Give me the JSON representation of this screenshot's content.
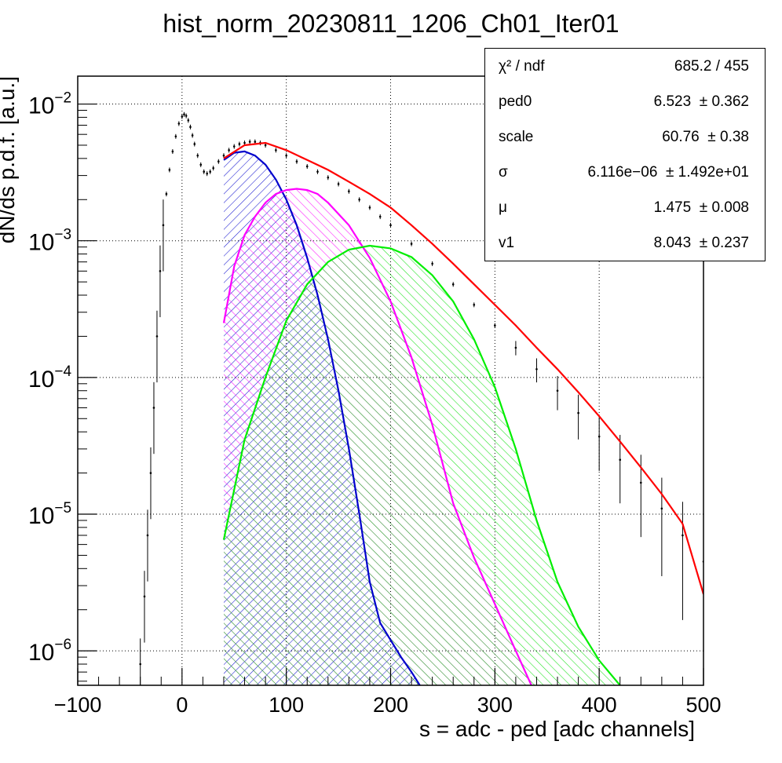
{
  "title": "hist_norm_20230811_1206_Ch01_Iter01",
  "stats_box": {
    "rows": [
      {
        "name": "χ² / ndf",
        "value": "685.2 / 455"
      },
      {
        "name": "ped0",
        "value": "6.523  ± 0.362"
      },
      {
        "name": "scale",
        "value": "60.76  ± 0.38"
      },
      {
        "name": "σ",
        "value": "6.116e−06  ± 1.492e+01"
      },
      {
        "name": "μ",
        "value": "1.475  ± 0.008"
      },
      {
        "name": "v1",
        "value": "8.043  ± 0.237"
      }
    ]
  },
  "colors": {
    "data": "#000000",
    "total_fit": "#ff0000",
    "component_1": "#0000cc",
    "component_2": "#ff00ff",
    "component_3": "#00ee00"
  },
  "chart_data": {
    "type": "line",
    "title": "hist_norm_20230811_1206_Ch01_Iter01",
    "xlabel": "s = adc - ped [adc channels]",
    "ylabel": "dN/ds p.d.f. [a.u.]",
    "xlim": [
      -100,
      500
    ],
    "ylim": [
      5.6e-07,
      0.016
    ],
    "yscale": "log",
    "grid": true,
    "x_ticks": [
      "−100",
      "0",
      "100",
      "200",
      "300",
      "400",
      "500"
    ],
    "y_ticks": [
      {
        "value": 0.01,
        "mant": "10",
        "exp": "−2"
      },
      {
        "value": 0.001,
        "mant": "10",
        "exp": "−3"
      },
      {
        "value": 0.0001,
        "mant": "10",
        "exp": "−4"
      },
      {
        "value": 1e-05,
        "mant": "10",
        "exp": "−5"
      },
      {
        "value": 1e-06,
        "mant": "10",
        "exp": "−6"
      }
    ],
    "series": [
      {
        "x": [
          -40,
          -36,
          -33,
          -30,
          -27,
          -24,
          -21,
          -18,
          -15,
          -12,
          -9,
          -6,
          -3,
          0,
          2,
          4,
          6,
          8,
          10,
          12,
          15,
          18,
          21,
          24,
          27,
          30,
          35,
          40,
          45,
          50,
          55,
          60,
          65,
          70,
          75,
          80,
          90,
          100,
          110,
          120,
          130,
          140,
          150,
          160,
          170,
          180,
          190,
          200,
          220,
          240,
          260,
          280,
          300,
          320,
          340,
          360,
          380,
          400,
          420,
          440,
          460,
          480,
          500
        ],
        "y": [
          8e-07,
          2.5e-06,
          7e-06,
          2e-05,
          6e-05,
          0.0002,
          0.0006,
          0.0013,
          0.0022,
          0.0033,
          0.0045,
          0.0058,
          0.0072,
          0.0081,
          0.0084,
          0.0082,
          0.0076,
          0.0068,
          0.0059,
          0.0051,
          0.0042,
          0.0036,
          0.0032,
          0.0031,
          0.0032,
          0.0034,
          0.0038,
          0.0042,
          0.0046,
          0.0049,
          0.0051,
          0.0052,
          0.0053,
          0.0053,
          0.0052,
          0.005,
          0.0046,
          0.0042,
          0.0038,
          0.0035,
          0.0032,
          0.0029,
          0.0026,
          0.0023,
          0.002,
          0.00175,
          0.0015,
          0.0013,
          0.00095,
          0.00068,
          0.00048,
          0.00034,
          0.00024,
          0.000165,
          0.000115,
          8e-05,
          5.5e-05,
          3.7e-05,
          2.5e-05,
          1.7e-05,
          1.1e-05,
          7e-06,
          4.5e-06
        ]
      },
      {
        "x": [
          40,
          60,
          80,
          100,
          120,
          140,
          160,
          180,
          200,
          220,
          240,
          260,
          280,
          300,
          320,
          340,
          360,
          380,
          400,
          420,
          440,
          460,
          480,
          500
        ],
        "y": [
          0.004,
          0.005,
          0.0052,
          0.0046,
          0.0039,
          0.0033,
          0.0027,
          0.0022,
          0.00175,
          0.0013,
          0.00095,
          0.00068,
          0.00048,
          0.00034,
          0.00024,
          0.000165,
          0.000115,
          7.8e-05,
          5.2e-05,
          3.4e-05,
          2.2e-05,
          1.4e-05,
          8.5e-06,
          2.6e-06
        ]
      },
      {
        "x": [
          40,
          50,
          60,
          70,
          80,
          90,
          100,
          110,
          120,
          130,
          140,
          150,
          160,
          170,
          180,
          190,
          200,
          210,
          220,
          228
        ],
        "y": [
          0.0039,
          0.0044,
          0.0045,
          0.0042,
          0.0036,
          0.0028,
          0.002,
          0.0013,
          0.00075,
          0.0004,
          0.00019,
          8e-05,
          3e-05,
          1e-05,
          3.2e-06,
          1.6e-06,
          1.2e-06,
          9e-07,
          7e-07,
          5.6e-07
        ]
      },
      {
        "x": [
          40,
          50,
          60,
          70,
          80,
          90,
          100,
          110,
          120,
          130,
          140,
          160,
          180,
          200,
          220,
          240,
          260,
          280,
          300,
          320,
          335
        ],
        "y": [
          0.00025,
          0.00065,
          0.0011,
          0.0015,
          0.0019,
          0.0022,
          0.00235,
          0.0024,
          0.00235,
          0.0022,
          0.0019,
          0.0013,
          0.00075,
          0.00036,
          0.00014,
          4.5e-05,
          1.2e-05,
          4.8e-06,
          2.2e-06,
          1e-06,
          5.6e-07
        ]
      },
      {
        "x": [
          40,
          60,
          80,
          100,
          120,
          140,
          160,
          180,
          200,
          220,
          240,
          260,
          280,
          300,
          320,
          340,
          360,
          380,
          400,
          420
        ],
        "y": [
          6.5e-06,
          3.5e-05,
          0.0001,
          0.00026,
          0.00048,
          0.0007,
          0.00086,
          0.00092,
          0.00088,
          0.00076,
          0.00056,
          0.00036,
          0.00019,
          8.5e-05,
          3e-05,
          9e-06,
          3.2e-06,
          1.5e-06,
          8.5e-07,
          5.6e-07
        ]
      }
    ]
  }
}
